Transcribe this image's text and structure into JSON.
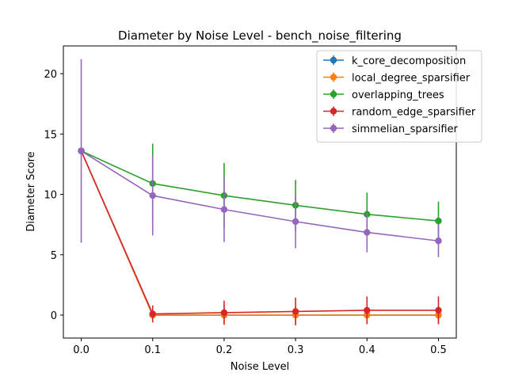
{
  "chart_data": {
    "type": "line",
    "title": "Diameter by Noise Level - bench_noise_filtering",
    "xlabel": "Noise Level",
    "ylabel": "Diameter Score",
    "x": [
      0.0,
      0.1,
      0.2,
      0.3,
      0.4,
      0.5
    ],
    "x_tick_labels": [
      "0.0",
      "0.1",
      "0.2",
      "0.3",
      "0.4",
      "0.5"
    ],
    "y_ticks": [
      0,
      5,
      10,
      15,
      20
    ],
    "xlim": [
      -0.025,
      0.525
    ],
    "ylim": [
      -1.9,
      22.3
    ],
    "grid": false,
    "legend_position": "top-right",
    "series": [
      {
        "name": "k_core_decomposition",
        "color": "#1f77b4",
        "values": [
          13.6,
          0.0,
          0.0,
          0.0,
          0.0,
          0.0
        ],
        "errors": [
          0.0,
          0.0,
          0.0,
          0.0,
          0.0,
          0.0
        ]
      },
      {
        "name": "local_degree_sparsifier",
        "color": "#ff7f0e",
        "values": [
          13.6,
          0.0,
          0.0,
          0.0,
          0.0,
          0.0
        ],
        "errors": [
          0.0,
          0.6,
          0.75,
          0.75,
          0.75,
          0.75
        ]
      },
      {
        "name": "overlapping_trees",
        "color": "#2ca02c",
        "values": [
          13.6,
          10.9,
          9.9,
          9.1,
          8.35,
          7.8
        ],
        "errors": [
          0.0,
          3.3,
          2.7,
          2.1,
          1.8,
          1.6
        ]
      },
      {
        "name": "random_edge_sparsifier",
        "color": "#d62728",
        "values": [
          13.6,
          0.1,
          0.2,
          0.3,
          0.4,
          0.4
        ],
        "errors": [
          0.0,
          0.7,
          1.0,
          1.15,
          1.15,
          1.15
        ]
      },
      {
        "name": "simmelian_sparsifier",
        "color": "#9467bd",
        "values": [
          13.6,
          9.9,
          8.75,
          7.75,
          6.85,
          6.15
        ],
        "errors": [
          7.6,
          3.3,
          2.7,
          2.2,
          1.65,
          1.35
        ]
      }
    ]
  }
}
